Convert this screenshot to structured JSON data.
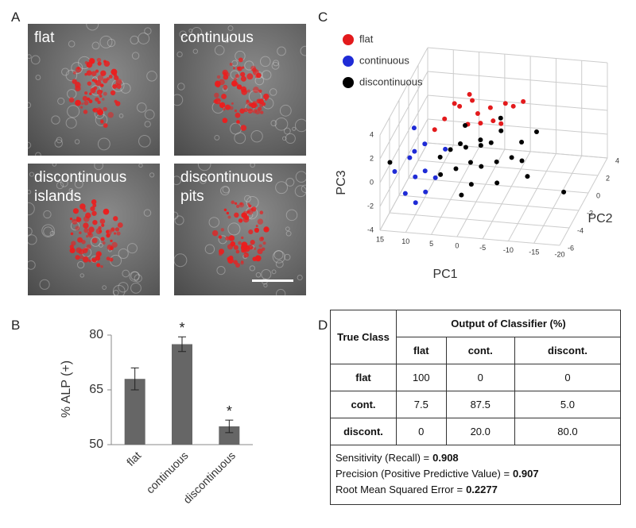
{
  "panel_labels": [
    "A",
    "B",
    "C",
    "D"
  ],
  "panel_a": {
    "images": [
      {
        "label": "flat"
      },
      {
        "label": "continuous"
      },
      {
        "label": "discontinuous islands"
      },
      {
        "label": "discontinuous pits"
      }
    ]
  },
  "chart_data": [
    {
      "type": "bar",
      "ylabel": "% ALP (+)",
      "categories": [
        "flat",
        "continuous",
        "discontinuous"
      ],
      "values": [
        68,
        77.5,
        55
      ],
      "errors": [
        3,
        2,
        1.7
      ],
      "significance": [
        null,
        "*",
        "*"
      ],
      "color": "#666666",
      "ylim": [
        50,
        80
      ],
      "yticks": [
        50,
        65,
        80
      ]
    },
    {
      "type": "scatter3d",
      "xlabel": "PC1",
      "ylabel": "PC2",
      "zlabel": "PC3",
      "xlim": [
        15,
        -20
      ],
      "xticks": [
        15,
        10,
        5,
        0,
        -5,
        -10,
        -15,
        -20
      ],
      "ylim": [
        -6,
        4
      ],
      "yticks": [
        -6,
        -4,
        -2,
        0,
        2,
        4
      ],
      "zlim": [
        -4,
        4
      ],
      "zticks": [
        -4,
        -2,
        0,
        2,
        4
      ],
      "grid": true,
      "series": [
        {
          "name": "flat",
          "color": "#e31a1c",
          "x": [
            6,
            4,
            2,
            0,
            -2,
            -4,
            8,
            3,
            1,
            -1,
            5,
            -3,
            7,
            9,
            -5
          ],
          "y": [
            1,
            1.5,
            0.5,
            1,
            2,
            1.5,
            0,
            -0.5,
            0,
            0.5,
            2,
            0,
            1,
            -1,
            2.5
          ],
          "z": [
            1.6,
            1.8,
            1.5,
            1.7,
            1.4,
            1.6,
            1.2,
            1.3,
            1.1,
            1.0,
            1.9,
            1.2,
            1.8,
            1.0,
            1.3
          ]
        },
        {
          "name": "continuous",
          "color": "#1f2bd6",
          "x": [
            12,
            10,
            14,
            9,
            11,
            8,
            13,
            10,
            7,
            12,
            9,
            6
          ],
          "y": [
            -3,
            -2,
            -4,
            -3,
            -5,
            -4,
            -1,
            -4,
            -3,
            -2,
            -5,
            -2
          ],
          "z": [
            0,
            0.5,
            -0.5,
            -1,
            -1.5,
            -2,
            1,
            -0.8,
            -1.5,
            -0.2,
            -2.2,
            0.2
          ]
        },
        {
          "name": "discontinuous",
          "color": "#000000",
          "x": [
            0,
            2,
            -2,
            4,
            -4,
            1,
            -6,
            3,
            -1,
            5,
            -3,
            -8,
            6,
            -5,
            2,
            -7,
            0,
            14,
            -10,
            -18,
            4,
            -2,
            7,
            -9,
            1
          ],
          "y": [
            -1,
            -2,
            -1,
            -1,
            -2,
            0,
            -1,
            -3,
            -2,
            -2,
            0,
            -1,
            -3,
            -3,
            -1,
            0,
            -3,
            -5,
            -2,
            -3,
            0,
            1,
            -2,
            1,
            -4
          ],
          "z": [
            0,
            0.5,
            0.3,
            0,
            -0.5,
            -0.3,
            -0.8,
            -0.6,
            -1,
            0.2,
            0.6,
            -1,
            -1.2,
            -1.5,
            -1.5,
            -0.2,
            -1.8,
            1,
            -1.5,
            -1.8,
            0.8,
            0.9,
            -0.5,
            0,
            -2
          ]
        }
      ]
    }
  ],
  "panel_d": {
    "table": {
      "row_header": "True Class",
      "group_header": "Output of Classifier (%)",
      "columns": [
        "flat",
        "cont.",
        "discont."
      ],
      "rows": [
        [
          "flat",
          "100",
          "0",
          "0"
        ],
        [
          "cont.",
          "7.5",
          "87.5",
          "5.0"
        ],
        [
          "discont.",
          "0",
          "20.0",
          "80.0"
        ]
      ]
    },
    "metrics": [
      {
        "label": "Sensitivity (Recall) =",
        "value": "0.908"
      },
      {
        "label": "Precision (Positive Predictive Value) =",
        "value": "0.907"
      },
      {
        "label": "Root Mean Squared Error =",
        "value": "0.2277"
      }
    ]
  }
}
